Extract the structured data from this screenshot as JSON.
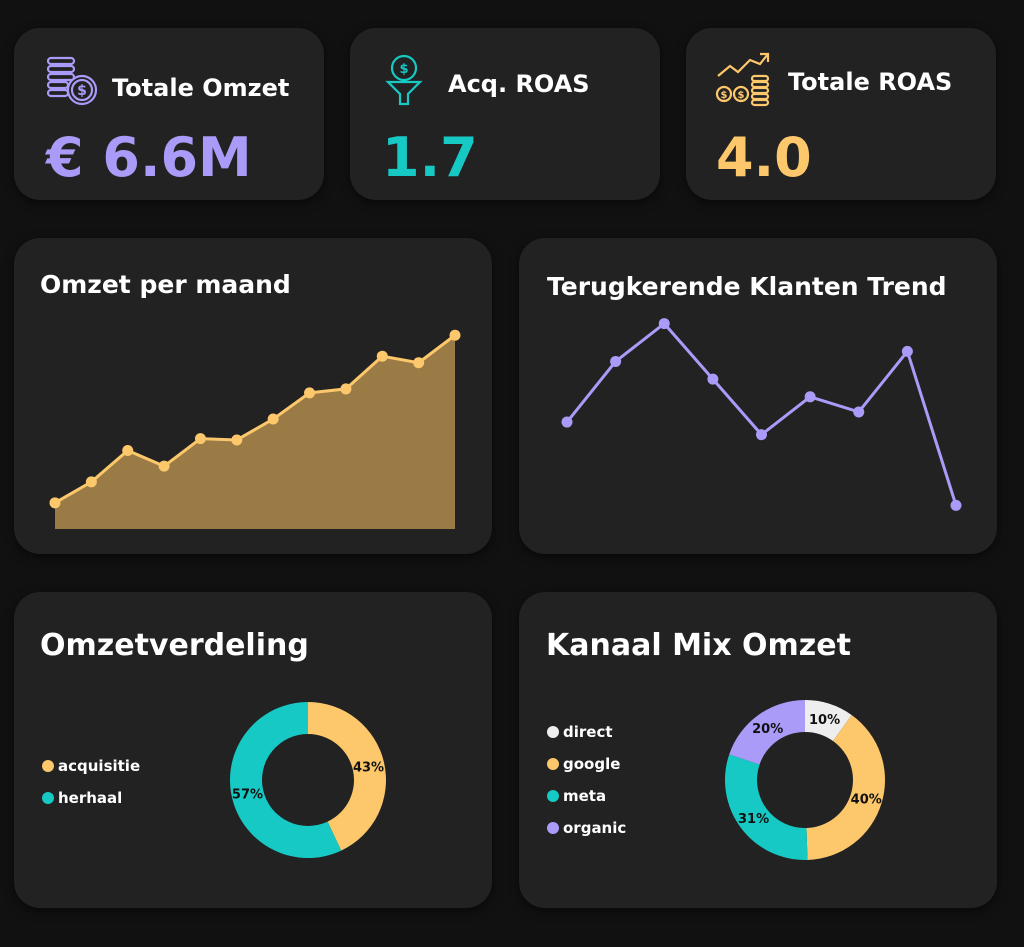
{
  "colors": {
    "purple": "#a99bf7",
    "teal": "#17c9c4",
    "gold": "#fdc86c",
    "gold_fill": "#9a7b45",
    "white": "#ffffff",
    "card": "#222222",
    "background": "#111111",
    "direct": "#eeeeee",
    "organic": "#a99bf7"
  },
  "kpis": [
    {
      "label": "Totale Omzet",
      "value": "€ 6.6M",
      "icon": "coins-dollar-icon",
      "color": "#a99bf7"
    },
    {
      "label": "Acq. ROAS",
      "value": "1.7",
      "icon": "funnel-dollar-icon",
      "color": "#17c9c4"
    },
    {
      "label": "Totale ROAS",
      "value": "4.0",
      "icon": "growth-coins-icon",
      "color": "#fdc86c"
    }
  ],
  "chart_data": [
    {
      "type": "area",
      "title": "Omzet per maand",
      "series": [
        {
          "values": [
            20,
            36,
            60,
            48,
            69,
            68,
            84,
            104,
            107,
            132,
            127,
            148
          ]
        }
      ],
      "ylim": [
        0,
        165
      ],
      "grid": false,
      "color": "#fdc86c"
    },
    {
      "type": "line",
      "title": "Terugkerende Klanten Trend",
      "series": [
        {
          "values": [
            58,
            82,
            97,
            75,
            53,
            68,
            62,
            86,
            25
          ]
        }
      ],
      "ylim": [
        20,
        100
      ],
      "grid": false,
      "color": "#a99bf7"
    },
    {
      "type": "pie",
      "title": "Omzetverdeling",
      "categories": [
        "acquisitie",
        "herhaal"
      ],
      "values": [
        43,
        57
      ],
      "labels": [
        "43%",
        "57%"
      ],
      "colors": [
        "#fdc86c",
        "#17c9c4"
      ],
      "legend": "left"
    },
    {
      "type": "pie",
      "title": "Kanaal Mix Omzet",
      "categories": [
        "direct",
        "google",
        "meta",
        "organic"
      ],
      "values": [
        10,
        40,
        31,
        20
      ],
      "labels": [
        "10%",
        "40%",
        "31%",
        "20%"
      ],
      "colors": [
        "#eeeeee",
        "#fdc86c",
        "#17c9c4",
        "#a99bf7"
      ],
      "legend": "left"
    }
  ]
}
